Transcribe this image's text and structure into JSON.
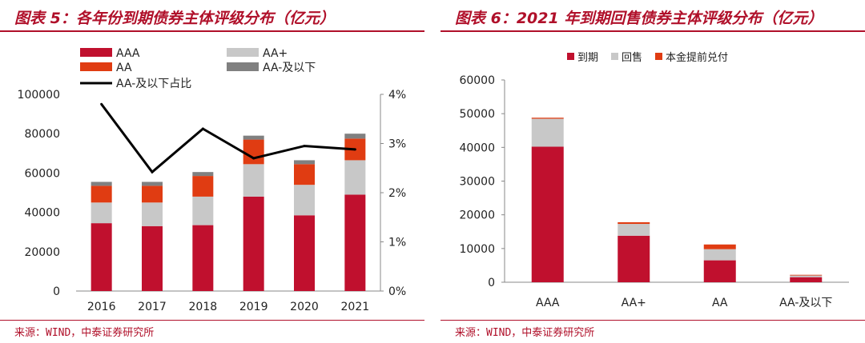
{
  "colors": {
    "title": "#b0102a",
    "AAA": "#c0102e",
    "AA+": "#c8c8c8",
    "AA": "#e03c12",
    "AA-": "#808080",
    "line": "#000000"
  },
  "left": {
    "title": "图表 5：各年份到期债券主体评级分布（亿元）",
    "source": "来源：WIND，中泰证券研究所",
    "chart_data": {
      "type": "bar",
      "stacked": true,
      "categories": [
        "2016",
        "2017",
        "2018",
        "2019",
        "2020",
        "2021"
      ],
      "series": [
        {
          "name": "AAA",
          "values": [
            34500,
            33000,
            33500,
            48000,
            38500,
            49000
          ]
        },
        {
          "name": "AA+",
          "values": [
            10500,
            12000,
            14500,
            16500,
            15500,
            17500
          ]
        },
        {
          "name": "AA",
          "values": [
            8500,
            8500,
            10500,
            12500,
            10500,
            11000
          ]
        },
        {
          "name": "AA-及以下",
          "values": [
            2000,
            2000,
            2000,
            2000,
            2000,
            2500
          ]
        }
      ],
      "line_series": {
        "name": "AA-及以下占比",
        "axis": "right",
        "values": [
          3.8,
          2.42,
          3.3,
          2.7,
          2.95,
          2.88
        ]
      },
      "ylim": [
        0,
        100000
      ],
      "yticks": [
        "0",
        "20000",
        "40000",
        "60000",
        "80000",
        "100000"
      ],
      "y2lim": [
        0,
        4
      ],
      "y2ticks": [
        "0%",
        "1%",
        "2%",
        "3%",
        "4%"
      ],
      "legend": [
        "AAA",
        "AA+",
        "AA",
        "AA-及以下",
        "AA-及以下占比"
      ],
      "legend_position": "top-left",
      "grid": false
    }
  },
  "right": {
    "title": "图表 6：2021 年到期回售债券主体评级分布（亿元）",
    "source": "来源：WIND，中泰证券研究所",
    "chart_data": {
      "type": "bar",
      "stacked": true,
      "categories": [
        "AAA",
        "AA+",
        "AA",
        "AA-及以下"
      ],
      "series": [
        {
          "name": "到期",
          "values": [
            40200,
            13800,
            6500,
            1500
          ]
        },
        {
          "name": "回售",
          "values": [
            8300,
            3500,
            3300,
            500
          ]
        },
        {
          "name": "本金提前兑付",
          "values": [
            300,
            500,
            1400,
            200
          ]
        }
      ],
      "ylim": [
        0,
        60000
      ],
      "yticks": [
        "0",
        "10000",
        "20000",
        "30000",
        "40000",
        "50000",
        "60000"
      ],
      "legend": [
        "到期",
        "回售",
        "本金提前兑付"
      ],
      "legend_position": "top",
      "grid": false
    }
  }
}
